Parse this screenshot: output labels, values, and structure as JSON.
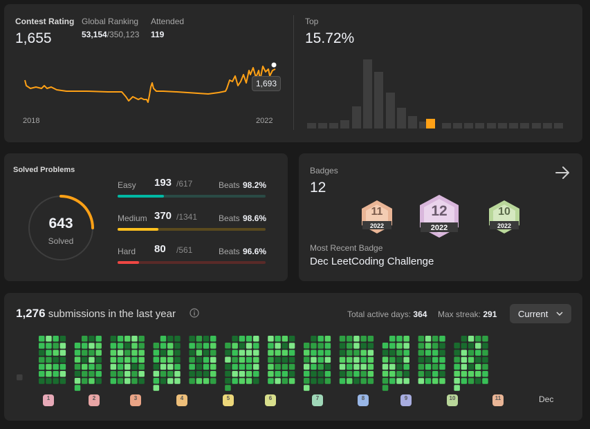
{
  "rating": {
    "label": "Contest Rating",
    "value": "1,655",
    "ranking_label": "Global Ranking",
    "ranking": "53,154",
    "ranking_total": "/350,123",
    "attended_label": "Attended",
    "attended": "119",
    "start_year": "2018",
    "end_year": "2022",
    "tooltip": "1,693",
    "line_color": "#ffa116"
  },
  "top": {
    "label": "Top",
    "value": "15.72%",
    "highlight_color": "#ffa116"
  },
  "solved": {
    "title": "Solved Problems",
    "total": "643",
    "total_label": "Solved",
    "rows": [
      {
        "label": "Easy",
        "count": "193",
        "total": "/617",
        "beats_label": "Beats",
        "beats": "98.2%",
        "fraction": 0.313,
        "color": "#00b8a3",
        "track": "#2a4a45"
      },
      {
        "label": "Medium",
        "count": "370",
        "total": "/1341",
        "beats_label": "Beats",
        "beats": "98.6%",
        "fraction": 0.276,
        "color": "#ffc01e",
        "track": "#5a4a1e"
      },
      {
        "label": "Hard",
        "count": "80",
        "total": "/561",
        "beats_label": "Beats",
        "beats": "96.6%",
        "fraction": 0.143,
        "color": "#ef4743",
        "track": "#5a2a28"
      }
    ]
  },
  "badges": {
    "label": "Badges",
    "count": "12",
    "arrow_icon": "arrow-right-icon",
    "items": [
      {
        "name": "badge-11",
        "number": "11",
        "year": "2022",
        "color": "#e9b596"
      },
      {
        "name": "badge-12",
        "number": "12",
        "year": "2022",
        "color": "#d9b7dc"
      },
      {
        "name": "badge-10",
        "number": "10",
        "year": "2022",
        "color": "#b9d79a"
      }
    ],
    "recent_label": "Most Recent Badge",
    "recent": "Dec LeetCoding Challenge"
  },
  "submissions": {
    "count": "1,276",
    "text": "submissions in the last year",
    "info_icon": "info-icon",
    "active_label": "Total active days:",
    "active": "364",
    "streak_label": "Max streak:",
    "streak": "291",
    "dropdown": "Current",
    "last_month": "Dec",
    "month_badges": [
      "1",
      "2",
      "3",
      "4",
      "5",
      "6",
      "7",
      "8",
      "9",
      "10",
      "11"
    ],
    "month_badge_colors": [
      "#e7a9b7",
      "#e8a5a5",
      "#eaa486",
      "#eebf7a",
      "#ecd77a",
      "#d8df8c",
      "#9fd7b8",
      "#98b6e6",
      "#a8ade0",
      "#b9d79a",
      "#e9b596"
    ]
  }
}
